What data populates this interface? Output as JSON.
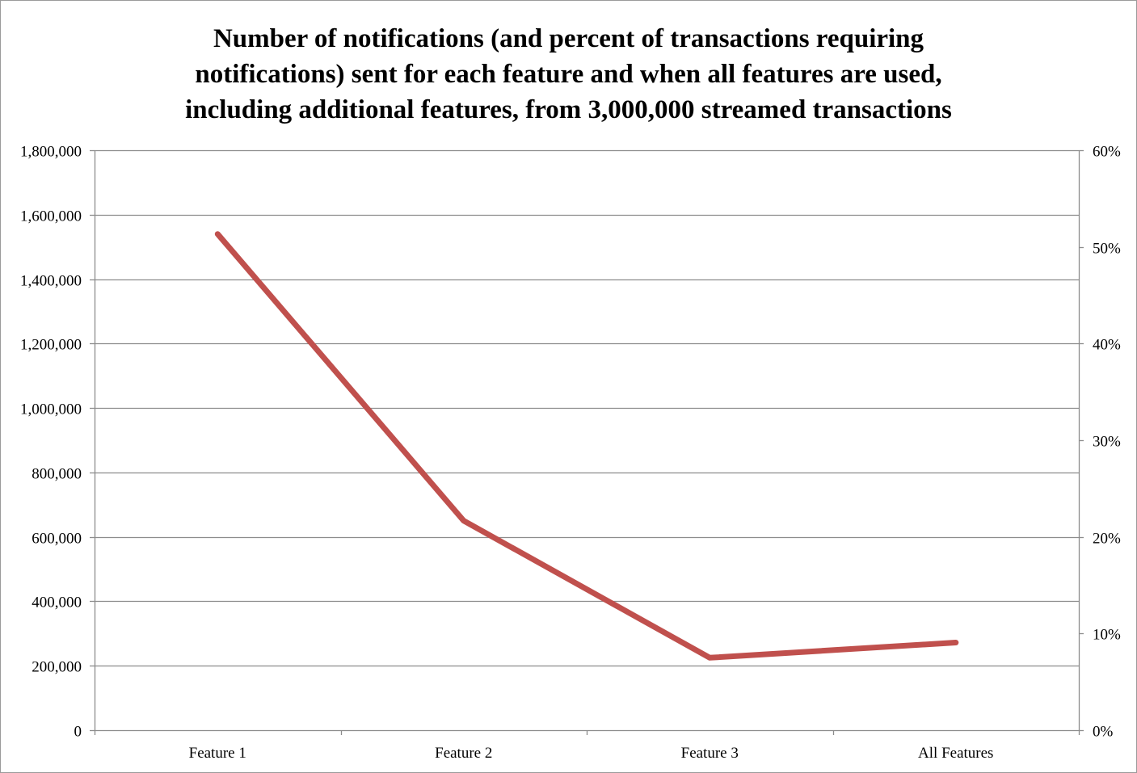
{
  "chart_data": {
    "type": "line",
    "title_lines": [
      "Number of notifications (and percent of transactions requiring",
      "notifications) sent for each feature and when all features are used,",
      "including additional features, from 3,000,000 streamed transactions"
    ],
    "categories": [
      "Feature 1",
      "Feature 2",
      "Feature 3",
      "All Features"
    ],
    "series": [
      {
        "values": [
          1540000,
          650000,
          225000,
          272000
        ],
        "color": "#c0504d"
      }
    ],
    "y_left": {
      "range": [
        0,
        1800000
      ],
      "ticks": [
        0,
        200000,
        400000,
        600000,
        800000,
        1000000,
        1200000,
        1400000,
        1600000,
        1800000
      ],
      "tick_labels": [
        "0",
        "200,000",
        "400,000",
        "600,000",
        "800,000",
        "1,000,000",
        "1,200,000",
        "1,400,000",
        "1,600,000",
        "1,800,000"
      ]
    },
    "y_right": {
      "range": [
        0,
        60
      ],
      "ticks": [
        0,
        10,
        20,
        30,
        40,
        50,
        60
      ],
      "tick_labels": [
        "0%",
        "10%",
        "20%",
        "30%",
        "40%",
        "50%",
        "60%"
      ]
    },
    "xlabel": "",
    "ylabel": "",
    "grid": true,
    "legend": "none"
  }
}
